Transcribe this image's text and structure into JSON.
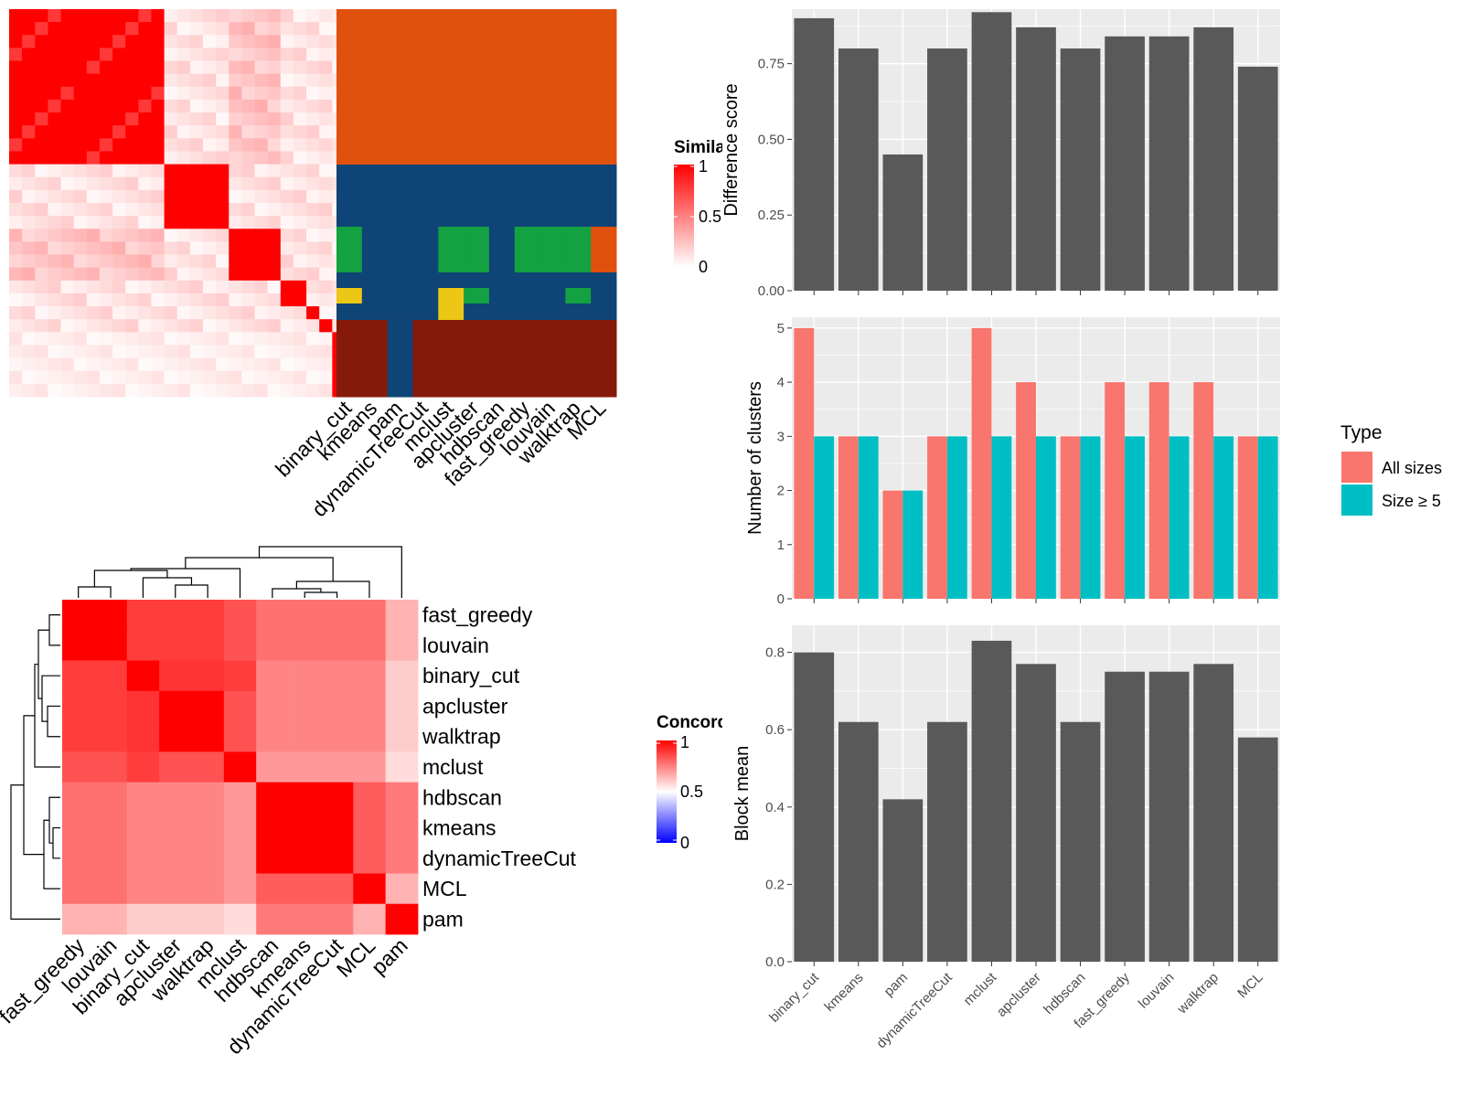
{
  "colors": {
    "panel_bg": "#ebebeb",
    "grid": "#ffffff",
    "bar": "#595959",
    "all_sizes": "#f8766d",
    "size_ge5": "#00bfc4",
    "sim_high": "#ff0000",
    "sim_low": "#ffffff",
    "conc_low": "#0000ff",
    "anno_orange": "#e1510e",
    "anno_blue": "#0e4476",
    "anno_green": "#13a141",
    "anno_yellow": "#ecc715",
    "anno_darkred": "#861a0a"
  },
  "similarity_panel": {
    "legend_title": "Similarity",
    "legend_ticks": [
      "1",
      "0.5",
      "0"
    ],
    "method_labels": [
      "binary_cut",
      "kmeans",
      "pam",
      "dynamicTreeCut",
      "mclust",
      "apcluster",
      "hdbscan",
      "fast_greedy",
      "louvain",
      "walktrap",
      "MCL"
    ]
  },
  "concordance_panel": {
    "legend_title": "Concordance",
    "legend_ticks": [
      "1",
      "0.5",
      "0"
    ],
    "row_labels": [
      "fast_greedy",
      "louvain",
      "binary_cut",
      "apcluster",
      "walktrap",
      "mclust",
      "hdbscan",
      "kmeans",
      "dynamicTreeCut",
      "MCL",
      "pam"
    ],
    "col_labels": [
      "fast_greedy",
      "louvain",
      "binary_cut",
      "apcluster",
      "walktrap",
      "mclust",
      "hdbscan",
      "kmeans",
      "dynamicTreeCut",
      "MCL",
      "pam"
    ]
  },
  "chart_data": [
    {
      "type": "bar",
      "categories": [
        "binary_cut",
        "kmeans",
        "pam",
        "dynamicTreeCut",
        "mclust",
        "apcluster",
        "hdbscan",
        "fast_greedy",
        "louvain",
        "walktrap",
        "MCL"
      ],
      "values": [
        0.9,
        0.8,
        0.45,
        0.8,
        0.92,
        0.87,
        0.8,
        0.84,
        0.84,
        0.87,
        0.74
      ],
      "ylabel": "Difference score",
      "ylim": [
        0,
        0.93
      ],
      "yticks": [
        "0.00",
        "0.25",
        "0.50",
        "0.75"
      ]
    },
    {
      "type": "bar",
      "categories": [
        "binary_cut",
        "kmeans",
        "pam",
        "dynamicTreeCut",
        "mclust",
        "apcluster",
        "hdbscan",
        "fast_greedy",
        "louvain",
        "walktrap",
        "MCL"
      ],
      "series": [
        {
          "name": "All sizes",
          "values": [
            5,
            3,
            2,
            3,
            5,
            4,
            3,
            4,
            4,
            4,
            3
          ]
        },
        {
          "name": "Size ≥ 5",
          "values": [
            3,
            3,
            2,
            3,
            3,
            3,
            3,
            3,
            3,
            3,
            3
          ]
        }
      ],
      "ylabel": "Number of clusters",
      "ylim": [
        0,
        5.2
      ],
      "yticks": [
        "0",
        "1",
        "2",
        "3",
        "4",
        "5"
      ],
      "legend_title": "Type",
      "legend_position": "right"
    },
    {
      "type": "bar",
      "categories": [
        "binary_cut",
        "kmeans",
        "pam",
        "dynamicTreeCut",
        "mclust",
        "apcluster",
        "hdbscan",
        "fast_greedy",
        "louvain",
        "walktrap",
        "MCL"
      ],
      "values": [
        0.8,
        0.62,
        0.42,
        0.62,
        0.83,
        0.77,
        0.62,
        0.75,
        0.75,
        0.77,
        0.58
      ],
      "ylabel": "Block mean",
      "ylim": [
        0,
        0.87
      ],
      "yticks": [
        "0.0",
        "0.2",
        "0.4",
        "0.6",
        "0.8"
      ]
    },
    {
      "type": "heatmap",
      "title": "",
      "row_labels": [
        "fast_greedy",
        "louvain",
        "binary_cut",
        "apcluster",
        "walktrap",
        "mclust",
        "hdbscan",
        "kmeans",
        "dynamicTreeCut",
        "MCL",
        "pam"
      ],
      "col_labels": [
        "fast_greedy",
        "louvain",
        "binary_cut",
        "apcluster",
        "walktrap",
        "mclust",
        "hdbscan",
        "kmeans",
        "dynamicTreeCut",
        "MCL",
        "pam"
      ],
      "values": [
        [
          1.0,
          1.0,
          0.88,
          0.88,
          0.88,
          0.84,
          0.78,
          0.78,
          0.78,
          0.78,
          0.65
        ],
        [
          1.0,
          1.0,
          0.88,
          0.88,
          0.88,
          0.84,
          0.78,
          0.78,
          0.78,
          0.78,
          0.65
        ],
        [
          0.88,
          0.88,
          1.0,
          0.9,
          0.9,
          0.88,
          0.74,
          0.74,
          0.74,
          0.74,
          0.6
        ],
        [
          0.88,
          0.88,
          0.9,
          1.0,
          1.0,
          0.84,
          0.74,
          0.74,
          0.74,
          0.74,
          0.6
        ],
        [
          0.88,
          0.88,
          0.9,
          1.0,
          1.0,
          0.84,
          0.74,
          0.74,
          0.74,
          0.74,
          0.6
        ],
        [
          0.84,
          0.84,
          0.88,
          0.84,
          0.84,
          1.0,
          0.7,
          0.7,
          0.7,
          0.7,
          0.57
        ],
        [
          0.78,
          0.78,
          0.74,
          0.74,
          0.74,
          0.7,
          1.0,
          1.0,
          1.0,
          0.82,
          0.76
        ],
        [
          0.78,
          0.78,
          0.74,
          0.74,
          0.74,
          0.7,
          1.0,
          1.0,
          1.0,
          0.82,
          0.76
        ],
        [
          0.78,
          0.78,
          0.74,
          0.74,
          0.74,
          0.7,
          1.0,
          1.0,
          1.0,
          0.82,
          0.76
        ],
        [
          0.78,
          0.78,
          0.74,
          0.74,
          0.74,
          0.7,
          0.82,
          0.82,
          0.82,
          1.0,
          0.65
        ],
        [
          0.65,
          0.65,
          0.6,
          0.6,
          0.6,
          0.57,
          0.76,
          0.76,
          0.76,
          0.65,
          1.0
        ]
      ]
    }
  ]
}
